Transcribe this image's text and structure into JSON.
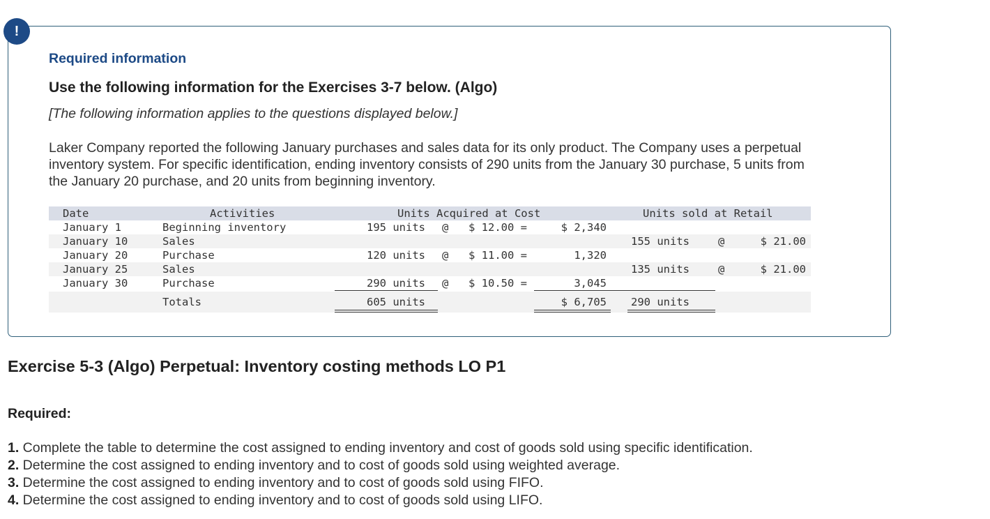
{
  "alert_icon": "!",
  "info": {
    "title": "Required information",
    "subtitle": "Use the following information for the Exercises 3-7 below. (Algo)",
    "applies": "[The following information applies to the questions displayed below.]",
    "paragraph": "Laker Company reported the following January purchases and sales data for its only product. The Company uses a perpetual inventory system. For specific identification, ending inventory consists of 290 units from the January 30 purchase, 5 units from the January 20 purchase, and 20 units from beginning inventory."
  },
  "table": {
    "headers": {
      "date": "Date",
      "activities": "Activities",
      "acquired": "Units Acquired at Cost",
      "sold": "Units sold at Retail"
    },
    "rows": [
      {
        "date": "January 1",
        "activity": "Beginning inventory",
        "acq_units": "195 units",
        "acq_at": "@",
        "acq_cost": "$ 12.00 =",
        "acq_total": "$ 2,340",
        "sold_units": "",
        "sold_at": "",
        "sold_price": ""
      },
      {
        "date": "January 10",
        "activity": "Sales",
        "acq_units": "",
        "acq_at": "",
        "acq_cost": "",
        "acq_total": "",
        "sold_units": "155 units",
        "sold_at": "@",
        "sold_price": "$ 21.00"
      },
      {
        "date": "January 20",
        "activity": "Purchase",
        "acq_units": "120 units",
        "acq_at": "@",
        "acq_cost": "$ 11.00 =",
        "acq_total": "1,320",
        "sold_units": "",
        "sold_at": "",
        "sold_price": ""
      },
      {
        "date": "January 25",
        "activity": "Sales",
        "acq_units": "",
        "acq_at": "",
        "acq_cost": "",
        "acq_total": "",
        "sold_units": "135 units",
        "sold_at": "@",
        "sold_price": "$ 21.00"
      },
      {
        "date": "January 30",
        "activity": "Purchase",
        "acq_units": "290 units",
        "acq_at": "@",
        "acq_cost": "$ 10.50 =",
        "acq_total": "3,045",
        "sold_units": "",
        "sold_at": "",
        "sold_price": ""
      }
    ],
    "totals": {
      "label": "Totals",
      "acq_units": "605 units",
      "acq_total": "$ 6,705",
      "sold_units": "290 units"
    }
  },
  "exercise_title": "Exercise 5-3 (Algo) Perpetual: Inventory costing methods LO P1",
  "required_label": "Required:",
  "requirements": [
    {
      "num": "1.",
      "text": " Complete the table to determine the cost assigned to ending inventory and cost of goods sold using specific identification."
    },
    {
      "num": "2.",
      "text": " Determine the cost assigned to ending inventory and to cost of goods sold using weighted average."
    },
    {
      "num": "3.",
      "text": " Determine the cost assigned to ending inventory and to cost of goods sold using FIFO."
    },
    {
      "num": "4.",
      "text": " Determine the cost assigned to ending inventory and to cost of goods sold using LIFO."
    }
  ]
}
